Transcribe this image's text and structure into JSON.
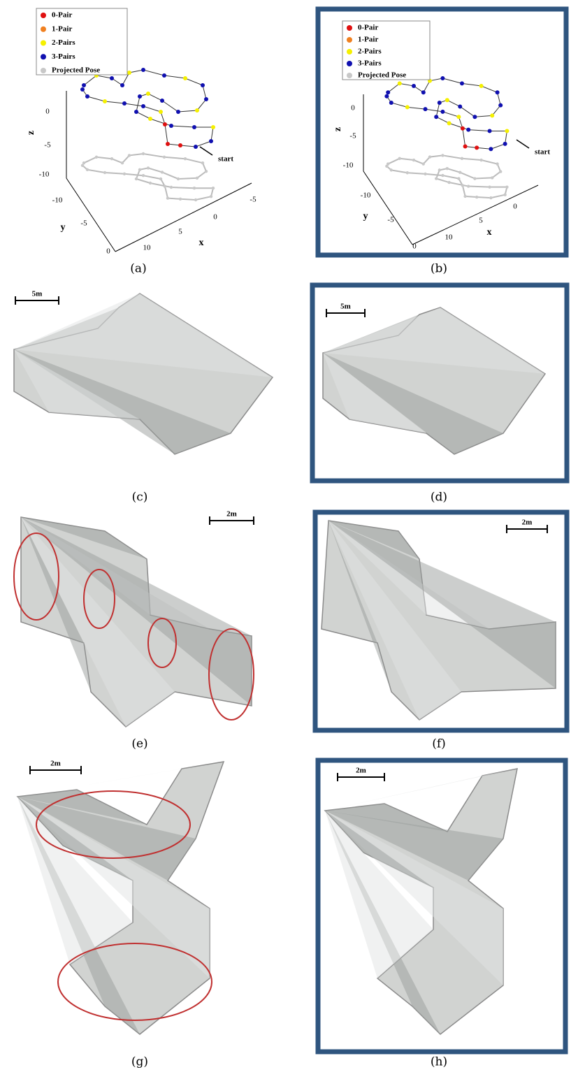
{
  "figure": {
    "panels": [
      {
        "caption": "(a)",
        "legend": [
          "0-Pair",
          "1-Pair",
          "2-Pairs",
          "3-Pairs",
          "Projected Pose"
        ],
        "axis_labels": {
          "x": "x",
          "y": "y",
          "z": "z"
        },
        "x_ticks": [
          "10",
          "5",
          "0",
          "-5"
        ],
        "y_ticks": [
          "-10",
          "-5",
          "0"
        ],
        "z_ticks": [
          "0",
          "-5",
          "-10"
        ],
        "annotation": "start"
      },
      {
        "caption": "(b)",
        "legend": [
          "0-Pair",
          "1-Pair",
          "2-Pairs",
          "3-Pairs",
          "Projected Pose"
        ],
        "axis_labels": {
          "x": "x",
          "y": "y",
          "z": "z"
        },
        "x_ticks": [
          "10",
          "5",
          "0"
        ],
        "y_ticks": [
          "-10",
          "-5",
          "0"
        ],
        "z_ticks": [
          "0",
          "-5",
          "-10"
        ],
        "annotation": "start"
      },
      {
        "caption": "(c)",
        "scale_bar": "5m"
      },
      {
        "caption": "(d)",
        "scale_bar": "5m"
      },
      {
        "caption": "(e)",
        "scale_bar": "2m"
      },
      {
        "caption": "(f)",
        "scale_bar": "2m"
      },
      {
        "caption": "(g)",
        "scale_bar": "2m"
      },
      {
        "caption": "(h)",
        "scale_bar": "2m"
      }
    ]
  }
}
